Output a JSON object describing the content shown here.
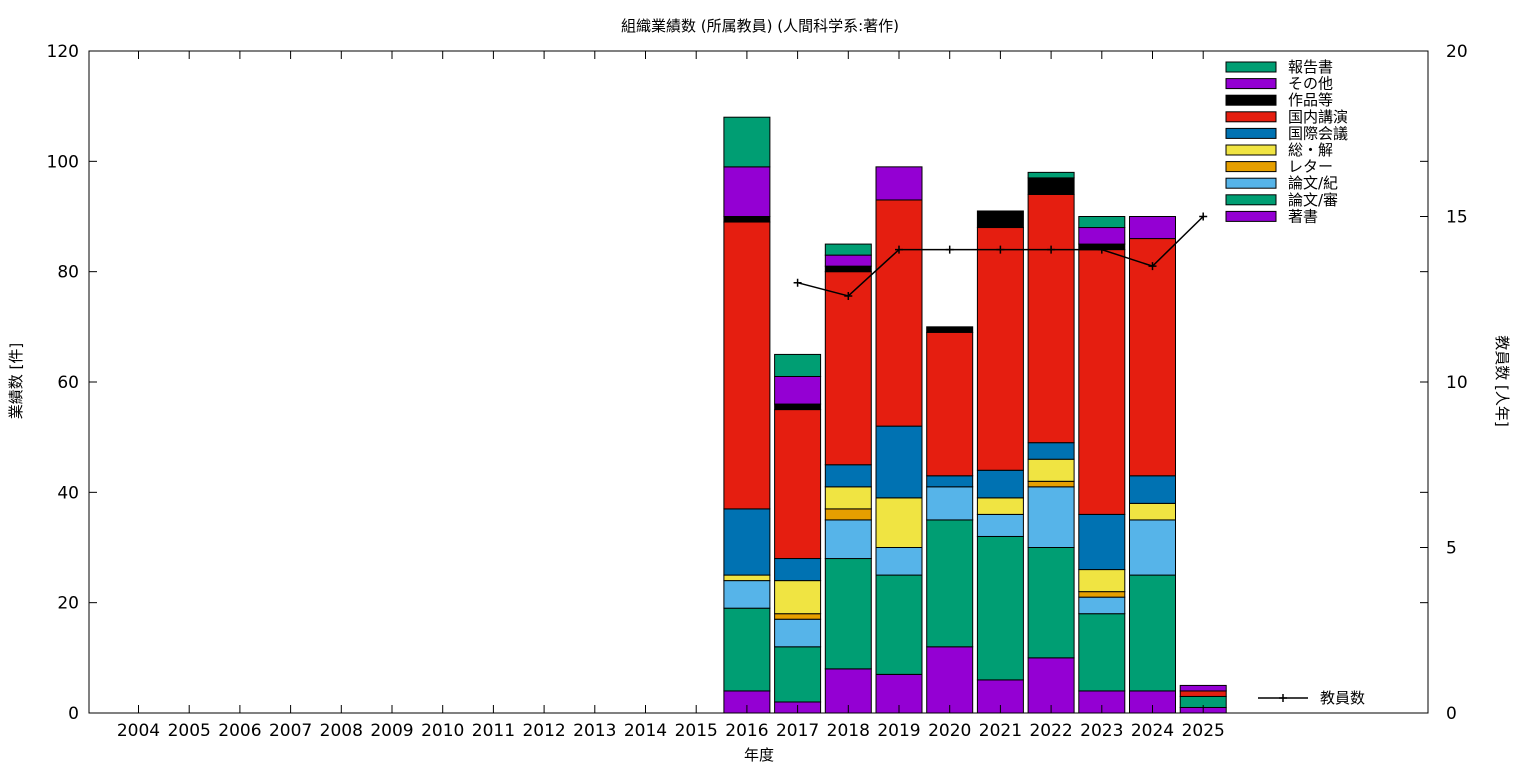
{
  "chart_data": {
    "type": "bar",
    "title": "組織業績数 (所属教員) (人間科学系:著作)",
    "xlabel": "年度",
    "ylabel": "業績数 [件]",
    "y2label": "教員数 [人年]",
    "categories": [
      "2004",
      "2005",
      "2006",
      "2007",
      "2008",
      "2009",
      "2010",
      "2011",
      "2012",
      "2013",
      "2014",
      "2015",
      "2016",
      "2017",
      "2018",
      "2019",
      "2020",
      "2021",
      "2022",
      "2023",
      "2024",
      "2025"
    ],
    "ylim": [
      0,
      120
    ],
    "yticks": [
      0,
      20,
      40,
      60,
      80,
      100,
      120
    ],
    "y2lim": [
      0,
      20
    ],
    "y2ticks": [
      0,
      5,
      10,
      15,
      20
    ],
    "grid": false,
    "legend": "top-right",
    "stacked": true,
    "series": [
      {
        "name": "著書",
        "color": "#9400d3",
        "values": [
          0,
          0,
          0,
          0,
          0,
          0,
          0,
          0,
          0,
          0,
          0,
          0,
          4,
          2,
          8,
          7,
          12,
          6,
          10,
          4,
          4,
          1
        ]
      },
      {
        "name": "論文/審",
        "color": "#009e73",
        "values": [
          0,
          0,
          0,
          0,
          0,
          0,
          0,
          0,
          0,
          0,
          0,
          0,
          15,
          10,
          20,
          18,
          23,
          26,
          20,
          14,
          21,
          2
        ]
      },
      {
        "name": "論文/紀",
        "color": "#56b4e9",
        "values": [
          0,
          0,
          0,
          0,
          0,
          0,
          0,
          0,
          0,
          0,
          0,
          0,
          5,
          5,
          7,
          5,
          6,
          4,
          11,
          3,
          10,
          0
        ]
      },
      {
        "name": "レター",
        "color": "#e69f00",
        "values": [
          0,
          0,
          0,
          0,
          0,
          0,
          0,
          0,
          0,
          0,
          0,
          0,
          0,
          1,
          2,
          0,
          0,
          0,
          1,
          1,
          0,
          0
        ]
      },
      {
        "name": "総・解",
        "color": "#f0e442",
        "values": [
          0,
          0,
          0,
          0,
          0,
          0,
          0,
          0,
          0,
          0,
          0,
          0,
          1,
          6,
          4,
          9,
          0,
          3,
          4,
          4,
          3,
          0
        ]
      },
      {
        "name": "国際会議",
        "color": "#0072b2",
        "values": [
          0,
          0,
          0,
          0,
          0,
          0,
          0,
          0,
          0,
          0,
          0,
          0,
          12,
          4,
          4,
          13,
          2,
          5,
          3,
          10,
          5,
          0
        ]
      },
      {
        "name": "国内講演",
        "color": "#e51e10",
        "values": [
          0,
          0,
          0,
          0,
          0,
          0,
          0,
          0,
          0,
          0,
          0,
          0,
          52,
          27,
          35,
          41,
          26,
          44,
          45,
          48,
          43,
          1
        ]
      },
      {
        "name": "作品等",
        "color": "#000000",
        "values": [
          0,
          0,
          0,
          0,
          0,
          0,
          0,
          0,
          0,
          0,
          0,
          0,
          1,
          1,
          1,
          0,
          1,
          3,
          3,
          1,
          0,
          0
        ]
      },
      {
        "name": "その他",
        "color": "#9400d3",
        "values": [
          0,
          0,
          0,
          0,
          0,
          0,
          0,
          0,
          0,
          0,
          0,
          0,
          9,
          5,
          2,
          6,
          0,
          0,
          0,
          3,
          4,
          1
        ]
      },
      {
        "name": "報告書",
        "color": "#009e73",
        "values": [
          0,
          0,
          0,
          0,
          0,
          0,
          0,
          0,
          0,
          0,
          0,
          0,
          9,
          4,
          2,
          0,
          0,
          0,
          1,
          2,
          0,
          0
        ]
      }
    ],
    "line": {
      "name": "教員数",
      "axis": "y2",
      "color": "#000000",
      "x": [
        "2017",
        "2018",
        "2019",
        "2020",
        "2021",
        "2022",
        "2023",
        "2024",
        "2025"
      ],
      "values": [
        13.0,
        12.6,
        14.0,
        14.0,
        14.0,
        14.0,
        14.0,
        13.5,
        15.0
      ]
    }
  }
}
